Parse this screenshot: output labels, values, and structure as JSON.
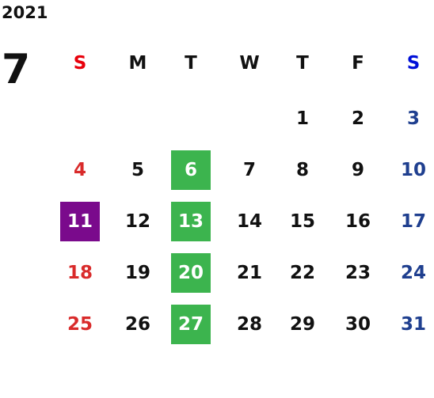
{
  "year": "2021",
  "month": "7",
  "weekdays": [
    {
      "label": "S",
      "color": "#e8000b"
    },
    {
      "label": "M",
      "color": "#111111"
    },
    {
      "label": "T",
      "color": "#111111"
    },
    {
      "label": "W",
      "color": "#111111"
    },
    {
      "label": "T",
      "color": "#111111"
    },
    {
      "label": "F",
      "color": "#111111"
    },
    {
      "label": "S",
      "color": "#0010d8"
    }
  ],
  "day_colors": [
    "#d92b2b",
    "#111111",
    "#111111",
    "#111111",
    "#111111",
    "#111111",
    "#1f3f8f"
  ],
  "highlight_text_color": "#ffffff",
  "weeks": [
    [
      null,
      null,
      null,
      null,
      {
        "day": "1"
      },
      {
        "day": "2"
      },
      {
        "day": "3"
      }
    ],
    [
      {
        "day": "4"
      },
      {
        "day": "5"
      },
      {
        "day": "6",
        "highlight": "#3cb44e"
      },
      {
        "day": "7"
      },
      {
        "day": "8"
      },
      {
        "day": "9"
      },
      {
        "day": "10"
      }
    ],
    [
      {
        "day": "11",
        "highlight": "#7a0a8c"
      },
      {
        "day": "12"
      },
      {
        "day": "13",
        "highlight": "#3cb44e"
      },
      {
        "day": "14"
      },
      {
        "day": "15"
      },
      {
        "day": "16"
      },
      {
        "day": "17"
      }
    ],
    [
      {
        "day": "18"
      },
      {
        "day": "19"
      },
      {
        "day": "20",
        "highlight": "#3cb44e"
      },
      {
        "day": "21"
      },
      {
        "day": "22"
      },
      {
        "day": "23"
      },
      {
        "day": "24"
      }
    ],
    [
      {
        "day": "25"
      },
      {
        "day": "26"
      },
      {
        "day": "27",
        "highlight": "#3cb44e"
      },
      {
        "day": "28"
      },
      {
        "day": "29"
      },
      {
        "day": "30"
      },
      {
        "day": "31"
      }
    ]
  ]
}
